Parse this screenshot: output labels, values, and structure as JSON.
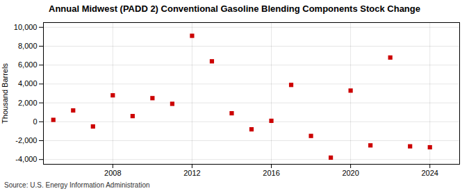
{
  "chart_data": {
    "type": "scatter",
    "title": "Annual Midwest (PADD 2) Conventional Gasoline Blending Components Stock Change",
    "ylabel": "Thousand Barrels",
    "source": "Source: U.S. Energy Information Administration",
    "x": [
      2005,
      2006,
      2007,
      2008,
      2009,
      2010,
      2011,
      2012,
      2013,
      2014,
      2015,
      2016,
      2017,
      2018,
      2019,
      2020,
      2021,
      2022,
      2023,
      2024
    ],
    "values": [
      200,
      1200,
      -500,
      2800,
      600,
      2500,
      1900,
      9100,
      6400,
      900,
      -800,
      100,
      3900,
      -1500,
      -3800,
      3300,
      -2500,
      6800,
      -2600,
      -2700
    ],
    "color": "#cc0000",
    "marker": "square",
    "xlim": [
      2004.5,
      2025.5
    ],
    "ylim": [
      -4500,
      10500
    ],
    "xticks": [
      2008,
      2012,
      2016,
      2020,
      2024
    ],
    "yticks": [
      {
        "value": -4000,
        "label": "-4,000"
      },
      {
        "value": -2000,
        "label": "-2,000"
      },
      0,
      {
        "value": 2000,
        "label": "2,000"
      },
      {
        "value": 4000,
        "label": "4,000"
      },
      {
        "value": 6000,
        "label": "6,000"
      },
      {
        "value": 8000,
        "label": "8,000"
      },
      {
        "value": 10000,
        "label": "10,000"
      }
    ],
    "grid": true
  }
}
